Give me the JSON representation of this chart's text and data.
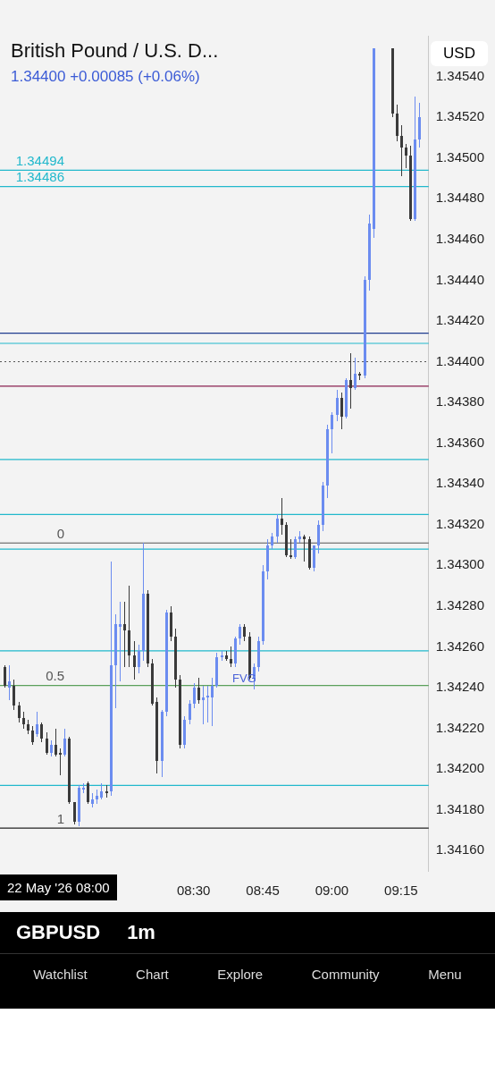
{
  "chart_data": {
    "type": "candlestick",
    "title": "British Pound / U.S. D...",
    "subtitle": "1.34400  +0.00085 (+0.06%)",
    "x": [
      "2026-05-22T07:49",
      "2026-05-22T07:50",
      "2026-05-22T07:51",
      "2026-05-22T07:52",
      "2026-05-22T07:53",
      "2026-05-22T07:54",
      "2026-05-22T07:55",
      "2026-05-22T07:56",
      "2026-05-22T07:57",
      "2026-05-22T07:58",
      "2026-05-22T07:59",
      "2026-05-22T08:00",
      "2026-05-22T08:01",
      "2026-05-22T08:02",
      "2026-05-22T08:03",
      "2026-05-22T08:04",
      "2026-05-22T08:05",
      "2026-05-22T08:06",
      "2026-05-22T08:07",
      "2026-05-22T08:08",
      "2026-05-22T08:09",
      "2026-05-22T08:10",
      "2026-05-22T08:11",
      "2026-05-22T08:12",
      "2026-05-22T08:13",
      "2026-05-22T08:14",
      "2026-05-22T08:15",
      "2026-05-22T08:16",
      "2026-05-22T08:17",
      "2026-05-22T08:18",
      "2026-05-22T08:19",
      "2026-05-22T08:20",
      "2026-05-22T08:21",
      "2026-05-22T08:22",
      "2026-05-22T08:23",
      "2026-05-22T08:24",
      "2026-05-22T08:25",
      "2026-05-22T08:26",
      "2026-05-22T08:27",
      "2026-05-22T08:28",
      "2026-05-22T08:29",
      "2026-05-22T08:30",
      "2026-05-22T08:31",
      "2026-05-22T08:32",
      "2026-05-22T08:33",
      "2026-05-22T08:34",
      "2026-05-22T08:35",
      "2026-05-22T08:36",
      "2026-05-22T08:37",
      "2026-05-22T08:38",
      "2026-05-22T08:39",
      "2026-05-22T08:40",
      "2026-05-22T08:41",
      "2026-05-22T08:42",
      "2026-05-22T08:43",
      "2026-05-22T08:44",
      "2026-05-22T08:45",
      "2026-05-22T08:46",
      "2026-05-22T08:47",
      "2026-05-22T08:48",
      "2026-05-22T08:49",
      "2026-05-22T08:50",
      "2026-05-22T08:51",
      "2026-05-22T08:52",
      "2026-05-22T08:53",
      "2026-05-22T08:54",
      "2026-05-22T08:55",
      "2026-05-22T08:56",
      "2026-05-22T08:57",
      "2026-05-22T08:58",
      "2026-05-22T08:59",
      "2026-05-22T09:00",
      "2026-05-22T09:01",
      "2026-05-22T09:02",
      "2026-05-22T09:03",
      "2026-05-22T09:04",
      "2026-05-22T09:05",
      "2026-05-22T09:06",
      "2026-05-22T09:07",
      "2026-05-22T09:08",
      "2026-05-22T09:09",
      "2026-05-22T09:13",
      "2026-05-22T09:14",
      "2026-05-22T09:15",
      "2026-05-22T09:16",
      "2026-05-22T09:17",
      "2026-05-22T09:18",
      "2026-05-22T09:19"
    ],
    "ohlc": [
      [
        1.3425,
        1.34251,
        1.3424,
        1.34241
      ],
      [
        1.3424,
        1.34251,
        1.34234,
        1.34243
      ],
      [
        1.34241,
        1.34244,
        1.34229,
        1.34231
      ],
      [
        1.34231,
        1.34233,
        1.34223,
        1.34225
      ],
      [
        1.34225,
        1.34228,
        1.3422,
        1.34222
      ],
      [
        1.34222,
        1.34224,
        1.34217,
        1.34219
      ],
      [
        1.34219,
        1.34221,
        1.34212,
        1.34213
      ],
      [
        1.34217,
        1.34228,
        1.34216,
        1.34222
      ],
      [
        1.34222,
        1.34223,
        1.34213,
        1.34215
      ],
      [
        1.34215,
        1.34218,
        1.34207,
        1.34208
      ],
      [
        1.34208,
        1.34214,
        1.34206,
        1.34212
      ],
      [
        1.34212,
        1.3422,
        1.34206,
        1.34207
      ],
      [
        1.34208,
        1.3421,
        1.34197,
        1.34207
      ],
      [
        1.34207,
        1.3422,
        1.34206,
        1.34215
      ],
      [
        1.34215,
        1.34216,
        1.34183,
        1.34184
      ],
      [
        1.34184,
        1.34184,
        1.34173,
        1.34174
      ],
      [
        1.34174,
        1.34192,
        1.34172,
        1.34191
      ],
      [
        1.3419,
        1.34193,
        1.34188,
        1.34191
      ],
      [
        1.34193,
        1.34194,
        1.34183,
        1.34184
      ],
      [
        1.34183,
        1.34188,
        1.34181,
        1.34185
      ],
      [
        1.34185,
        1.3419,
        1.34183,
        1.34187
      ],
      [
        1.34186,
        1.34193,
        1.34185,
        1.34189
      ],
      [
        1.34189,
        1.34192,
        1.34186,
        1.34188
      ],
      [
        1.34189,
        1.34302,
        1.34187,
        1.34251
      ],
      [
        1.34251,
        1.34276,
        1.3423,
        1.34271
      ],
      [
        1.3427,
        1.34282,
        1.34243,
        1.34271
      ],
      [
        1.34271,
        1.34282,
        1.3425,
        1.34268
      ],
      [
        1.34268,
        1.3429,
        1.3425,
        1.34256
      ],
      [
        1.34256,
        1.34263,
        1.34244,
        1.3425
      ],
      [
        1.3425,
        1.34261,
        1.34247,
        1.34258
      ],
      [
        1.34258,
        1.34311,
        1.34253,
        1.34286
      ],
      [
        1.34286,
        1.34288,
        1.3425,
        1.34252
      ],
      [
        1.34252,
        1.34254,
        1.34231,
        1.34232
      ],
      [
        1.34233,
        1.34235,
        1.34198,
        1.34204
      ],
      [
        1.34204,
        1.34229,
        1.34196,
        1.34228
      ],
      [
        1.34228,
        1.34278,
        1.34226,
        1.34277
      ],
      [
        1.34277,
        1.3428,
        1.34263,
        1.34265
      ],
      [
        1.34265,
        1.34269,
        1.3424,
        1.34244
      ],
      [
        1.34244,
        1.34246,
        1.3421,
        1.34212
      ],
      [
        1.34212,
        1.34226,
        1.3421,
        1.34224
      ],
      [
        1.34224,
        1.34234,
        1.34222,
        1.34232
      ],
      [
        1.34232,
        1.34242,
        1.3423,
        1.3424
      ],
      [
        1.3424,
        1.34245,
        1.34232,
        1.34234
      ],
      [
        1.34234,
        1.34241,
        1.34222,
        1.34235
      ],
      [
        1.34235,
        1.34241,
        1.34223,
        1.34236
      ],
      [
        1.34235,
        1.34245,
        1.34221,
        1.34241
      ],
      [
        1.34241,
        1.34257,
        1.3424,
        1.34255
      ],
      [
        1.34255,
        1.34258,
        1.34253,
        1.34256
      ],
      [
        1.34256,
        1.34258,
        1.34253,
        1.34254
      ],
      [
        1.34254,
        1.3426,
        1.3425,
        1.34252
      ],
      [
        1.34252,
        1.34265,
        1.3425,
        1.34264
      ],
      [
        1.34264,
        1.34271,
        1.34261,
        1.3427
      ],
      [
        1.3427,
        1.34271,
        1.34263,
        1.34265
      ],
      [
        1.34265,
        1.34267,
        1.34244,
        1.34245
      ],
      [
        1.34245,
        1.34252,
        1.34239,
        1.3425
      ],
      [
        1.3425,
        1.34265,
        1.34248,
        1.34263
      ],
      [
        1.34263,
        1.343,
        1.34261,
        1.34297
      ],
      [
        1.34297,
        1.34313,
        1.34293,
        1.3431
      ],
      [
        1.3431,
        1.34316,
        1.34308,
        1.34314
      ],
      [
        1.34314,
        1.34325,
        1.34311,
        1.34323
      ],
      [
        1.34323,
        1.34333,
        1.34315,
        1.3432
      ],
      [
        1.3432,
        1.34321,
        1.34304,
        1.34305
      ],
      [
        1.34305,
        1.34313,
        1.34303,
        1.34304
      ],
      [
        1.34304,
        1.34314,
        1.34303,
        1.34313
      ],
      [
        1.34313,
        1.34317,
        1.34311,
        1.34314
      ],
      [
        1.34314,
        1.34315,
        1.34302,
        1.34313
      ],
      [
        1.34313,
        1.34314,
        1.34298,
        1.34299
      ],
      [
        1.34299,
        1.3431,
        1.34297,
        1.3431
      ],
      [
        1.3431,
        1.34322,
        1.34306,
        1.3432
      ],
      [
        1.3432,
        1.34341,
        1.34317,
        1.34339
      ],
      [
        1.34339,
        1.34369,
        1.34333,
        1.34367
      ],
      [
        1.34367,
        1.34375,
        1.34355,
        1.34374
      ],
      [
        1.34374,
        1.34386,
        1.34371,
        1.34382
      ],
      [
        1.34382,
        1.34385,
        1.34367,
        1.34373
      ],
      [
        1.34373,
        1.34392,
        1.34372,
        1.34391
      ],
      [
        1.34391,
        1.34404,
        1.34377,
        1.34387
      ],
      [
        1.34387,
        1.34402,
        1.34386,
        1.34394
      ],
      [
        1.34394,
        1.34395,
        1.34391,
        1.34393
      ],
      [
        1.34393,
        1.34442,
        1.34392,
        1.3444
      ],
      [
        1.3444,
        1.34472,
        1.34435,
        1.34468
      ],
      [
        1.34465,
        1.34554,
        1.34461,
        1.34554
      ],
      [
        1.34554,
        1.34554,
        1.3452,
        1.34522
      ],
      [
        1.34522,
        1.34526,
        1.34508,
        1.34511
      ],
      [
        1.34511,
        1.34516,
        1.34491,
        1.34505
      ],
      [
        1.34505,
        1.34507,
        1.34495,
        1.34501
      ],
      [
        1.34501,
        1.34506,
        1.34469,
        1.3447
      ],
      [
        1.3447,
        1.3453,
        1.34469,
        1.34509
      ],
      [
        1.34509,
        1.34527,
        1.34505,
        1.3452
      ]
    ],
    "xlim": [
      "2026-05-22T07:48",
      "2026-05-22T09:21"
    ],
    "xticks": [
      {
        "value": "2026-05-22T08:30",
        "label": "08:30"
      },
      {
        "value": "2026-05-22T08:45",
        "label": "08:45"
      },
      {
        "value": "2026-05-22T09:00",
        "label": "09:00"
      },
      {
        "value": "2026-05-22T09:15",
        "label": "09:15"
      }
    ],
    "ylim": [
      1.3415,
      1.3456
    ],
    "yticks": [
      {
        "value": 1.3416,
        "label": "1.34160"
      },
      {
        "value": 1.3418,
        "label": "1.34180"
      },
      {
        "value": 1.342,
        "label": "1.34200"
      },
      {
        "value": 1.3422,
        "label": "1.34220"
      },
      {
        "value": 1.3424,
        "label": "1.34240"
      },
      {
        "value": 1.3426,
        "label": "1.34260"
      },
      {
        "value": 1.3428,
        "label": "1.34280"
      },
      {
        "value": 1.343,
        "label": "1.34300"
      },
      {
        "value": 1.3432,
        "label": "1.34320"
      },
      {
        "value": 1.3434,
        "label": "1.34340"
      },
      {
        "value": 1.3436,
        "label": "1.34360"
      },
      {
        "value": 1.3438,
        "label": "1.34380"
      },
      {
        "value": 1.344,
        "label": "1.34400"
      },
      {
        "value": 1.3442,
        "label": "1.34420"
      },
      {
        "value": 1.3444,
        "label": "1.34440"
      },
      {
        "value": 1.3446,
        "label": "1.34460"
      },
      {
        "value": 1.3448,
        "label": "1.34480"
      },
      {
        "value": 1.345,
        "label": "1.34500"
      },
      {
        "value": 1.3452,
        "label": "1.34520"
      },
      {
        "value": 1.3454,
        "label": "1.34540"
      }
    ],
    "ref_lines": [
      {
        "axis": "y",
        "value": 1.34494,
        "label": "1.34494",
        "color": "#21b8cc"
      },
      {
        "axis": "y",
        "value": 1.34486,
        "label": "1.34486",
        "color": "#21b8cc"
      },
      {
        "axis": "y",
        "value": 1.34414,
        "color": "#1f3c8f"
      },
      {
        "axis": "y",
        "value": 1.34409,
        "color": "#21b8cc"
      },
      {
        "axis": "y",
        "value": 1.344,
        "color": "#555555",
        "line_style": "dotted"
      },
      {
        "axis": "y",
        "value": 1.34388,
        "color": "#8a2050"
      },
      {
        "axis": "y",
        "value": 1.34352,
        "color": "#21b8cc"
      },
      {
        "axis": "y",
        "value": 1.34325,
        "color": "#21b8cc"
      },
      {
        "axis": "y",
        "value": 1.34311,
        "color": "#555555"
      },
      {
        "axis": "y",
        "value": 1.34308,
        "color": "#21b8cc"
      },
      {
        "axis": "y",
        "value": 1.34258,
        "color": "#21b8cc"
      },
      {
        "axis": "y",
        "value": 1.34241,
        "color": "#5aa05a"
      },
      {
        "axis": "y",
        "value": 1.34192,
        "color": "#21b8cc"
      },
      {
        "axis": "y",
        "value": 1.34171,
        "color": "#222222"
      }
    ],
    "annotations": [
      "USD",
      "GBPUSD",
      "1m",
      "Watchlist",
      "Chart",
      "Explore",
      "Community",
      "Menu",
      {
        "text": "FVG",
        "x": "2026-05-22T08:41",
        "y": 1.34241
      },
      "22 May '26  08:00",
      {
        "text": "0",
        "y": 1.34311
      },
      {
        "text": "0.5",
        "y": 1.34241
      },
      {
        "text": "1",
        "y": 1.34171
      }
    ]
  }
}
